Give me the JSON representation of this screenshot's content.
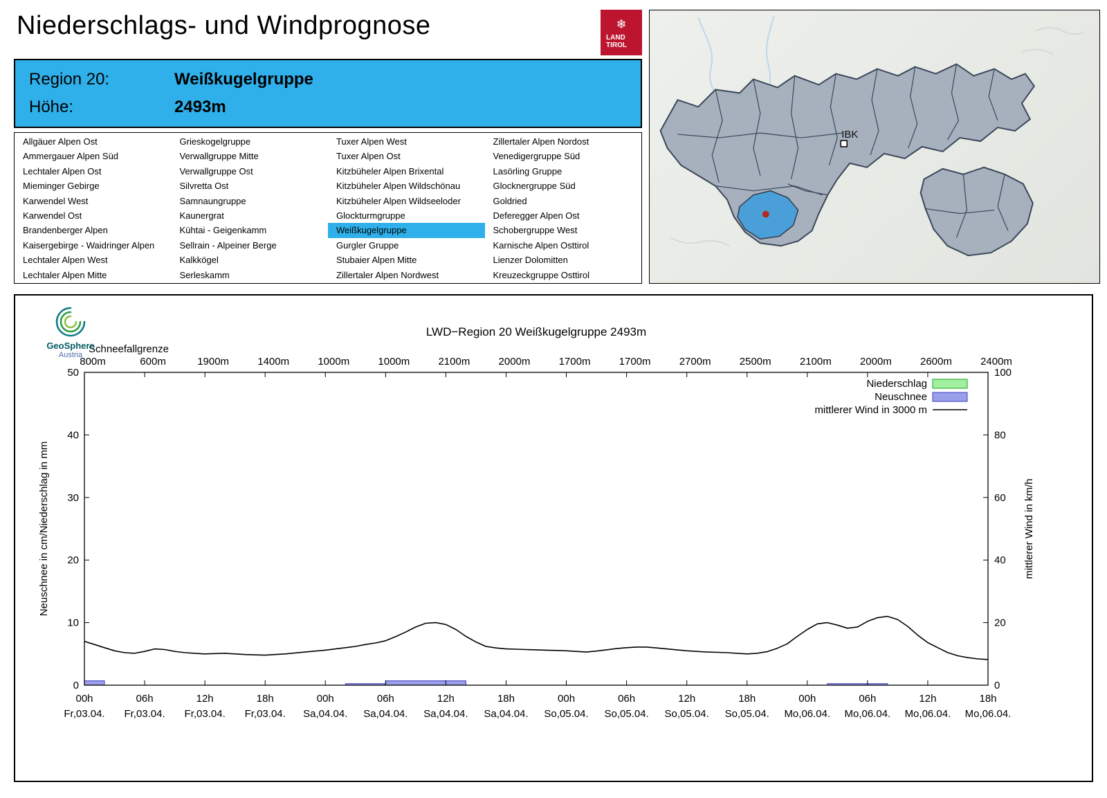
{
  "header": {
    "title": "Niederschlags- und Windprognose"
  },
  "logo": {
    "line1": "LAND",
    "line2": "TIROL"
  },
  "icons": {
    "snowflake": "❄"
  },
  "colors": {
    "accent": "#2fb0ea",
    "tirol_red": "#bd1530",
    "map_region_fill": "#a7b0bd",
    "map_region_stroke": "#39465a",
    "map_highlight": "#4b9fd9",
    "location_dot": "#b02a20",
    "niederschlag_fill": "#a0f0a0",
    "niederschlag_stroke": "#1ca01c",
    "neuschnee_fill": "#9aa0e8",
    "neuschnee_stroke": "#3c3cc8",
    "wind_line": "#000000"
  },
  "region_box": {
    "region_label": "Region 20:",
    "region_name": "Weißkugelgruppe",
    "altitude_label": "Höhe:",
    "altitude_value": "2493m"
  },
  "region_list": {
    "selected": "Weißkugelgruppe",
    "columns": [
      [
        "Allgäuer Alpen Ost",
        "Ammergauer Alpen Süd",
        "Lechtaler Alpen Ost",
        "Mieminger Gebirge",
        "Karwendel West",
        "Karwendel Ost",
        "Brandenberger Alpen",
        "Kaisergebirge - Waidringer Alpen",
        "Lechtaler Alpen West",
        "Lechtaler Alpen Mitte"
      ],
      [
        "Grieskogelgruppe",
        "Verwallgruppe Mitte",
        "Verwallgruppe Ost",
        "Silvretta Ost",
        "Samnaungruppe",
        "Kaunergrat",
        "Kühtai - Geigenkamm",
        "Sellrain - Alpeiner Berge",
        "Kalkkögel",
        "Serleskamm"
      ],
      [
        "Tuxer Alpen West",
        "Tuxer Alpen Ost",
        "Kitzbüheler Alpen Brixental",
        "Kitzbüheler Alpen Wildschönau",
        "Kitzbüheler Alpen Wildseeloder",
        "Glockturmgruppe",
        "Weißkugelgruppe",
        "Gurgler Gruppe",
        "Stubaier Alpen Mitte",
        "Zillertaler Alpen Nordwest"
      ],
      [
        "Zillertaler Alpen Nordost",
        "Venedigergruppe Süd",
        "Lasörling Gruppe",
        "Glocknergruppe Süd",
        "Goldried",
        "Deferegger Alpen Ost",
        "Schobergruppe West",
        "Karnische Alpen Osttirol",
        "Lienzer Dolomitten",
        "Kreuzeckgruppe Osttirol"
      ]
    ]
  },
  "map": {
    "city_label": "IBK"
  },
  "geosphere": {
    "name": "GeoSphere",
    "sub": "Austria"
  },
  "chart_data": {
    "type": "mixed",
    "title": "LWD−Region 20 Weißkugelgruppe 2493m",
    "snowline_label": "Schneefallgrenze",
    "snowline_values": [
      "800m",
      "600m",
      "1900m",
      "1400m",
      "1000m",
      "1000m",
      "2100m",
      "2000m",
      "1700m",
      "1700m",
      "2700m",
      "2500m",
      "2100m",
      "2000m",
      "2600m",
      "2400m"
    ],
    "x_unit": "hours_from_start",
    "x_range": [
      0,
      90
    ],
    "axes": {
      "left": {
        "label": "Neuschnee in cm/Niederschlag in mm",
        "range": [
          0,
          50
        ],
        "ticks": [
          0,
          10,
          20,
          30,
          40,
          50
        ]
      },
      "right": {
        "label": "mittlerer Wind in km/h",
        "range": [
          0,
          100
        ],
        "ticks": [
          0,
          20,
          40,
          60,
          80,
          100
        ]
      }
    },
    "xticks": [
      {
        "hour": 0,
        "time": "00h",
        "date": "Fr,03.04."
      },
      {
        "hour": 6,
        "time": "06h",
        "date": "Fr,03.04."
      },
      {
        "hour": 12,
        "time": "12h",
        "date": "Fr,03.04."
      },
      {
        "hour": 18,
        "time": "18h",
        "date": "Fr,03.04."
      },
      {
        "hour": 24,
        "time": "00h",
        "date": "Sa,04.04."
      },
      {
        "hour": 30,
        "time": "06h",
        "date": "Sa,04.04."
      },
      {
        "hour": 36,
        "time": "12h",
        "date": "Sa,04.04."
      },
      {
        "hour": 42,
        "time": "18h",
        "date": "Sa,04.04."
      },
      {
        "hour": 48,
        "time": "00h",
        "date": "So,05.04."
      },
      {
        "hour": 54,
        "time": "06h",
        "date": "So,05.04."
      },
      {
        "hour": 60,
        "time": "12h",
        "date": "So,05.04."
      },
      {
        "hour": 66,
        "time": "18h",
        "date": "So,05.04."
      },
      {
        "hour": 72,
        "time": "00h",
        "date": "Mo,06.04."
      },
      {
        "hour": 78,
        "time": "06h",
        "date": "Mo,06.04."
      },
      {
        "hour": 84,
        "time": "12h",
        "date": "Mo,06.04."
      },
      {
        "hour": 90,
        "time": "18h",
        "date": "Mo,06.04."
      }
    ],
    "legend": [
      {
        "label": "Niederschlag",
        "swatch": "box",
        "fill": "#a0f0a0",
        "stroke": "#1ca01c"
      },
      {
        "label": "Neuschnee",
        "swatch": "box",
        "fill": "#9aa0e8",
        "stroke": "#3c3cc8"
      },
      {
        "label": "mittlerer Wind in 3000 m",
        "swatch": "line",
        "stroke": "#000000"
      }
    ],
    "series": {
      "wind_kmh": [
        [
          0,
          14
        ],
        [
          1,
          13
        ],
        [
          2,
          12
        ],
        [
          3,
          11
        ],
        [
          4,
          10.4
        ],
        [
          5,
          10.2
        ],
        [
          6,
          10.8
        ],
        [
          7,
          11.6
        ],
        [
          8,
          11.4
        ],
        [
          9,
          10.8
        ],
        [
          10,
          10.4
        ],
        [
          11,
          10.2
        ],
        [
          12,
          10
        ],
        [
          13,
          10.1
        ],
        [
          14,
          10.2
        ],
        [
          15,
          10
        ],
        [
          16,
          9.8
        ],
        [
          17,
          9.7
        ],
        [
          18,
          9.6
        ],
        [
          19,
          9.8
        ],
        [
          20,
          10
        ],
        [
          21,
          10.3
        ],
        [
          22,
          10.6
        ],
        [
          23,
          10.9
        ],
        [
          24,
          11.2
        ],
        [
          25,
          11.6
        ],
        [
          26,
          12
        ],
        [
          27,
          12.4
        ],
        [
          28,
          13
        ],
        [
          29,
          13.5
        ],
        [
          30,
          14.2
        ],
        [
          31,
          15.5
        ],
        [
          32,
          17
        ],
        [
          33,
          18.6
        ],
        [
          34,
          19.8
        ],
        [
          35,
          20
        ],
        [
          36,
          19.4
        ],
        [
          37,
          17.8
        ],
        [
          38,
          15.6
        ],
        [
          39,
          13.8
        ],
        [
          40,
          12.4
        ],
        [
          41,
          11.9
        ],
        [
          42,
          11.6
        ],
        [
          43,
          11.5
        ],
        [
          44,
          11.4
        ],
        [
          45,
          11.3
        ],
        [
          46,
          11.2
        ],
        [
          47,
          11.1
        ],
        [
          48,
          11
        ],
        [
          49,
          10.8
        ],
        [
          50,
          10.6
        ],
        [
          51,
          10.9
        ],
        [
          52,
          11.3
        ],
        [
          53,
          11.7
        ],
        [
          54,
          12
        ],
        [
          55,
          12.2
        ],
        [
          56,
          12.2
        ],
        [
          57,
          11.9
        ],
        [
          58,
          11.6
        ],
        [
          59,
          11.3
        ],
        [
          60,
          11
        ],
        [
          61,
          10.8
        ],
        [
          62,
          10.6
        ],
        [
          63,
          10.5
        ],
        [
          64,
          10.4
        ],
        [
          65,
          10.2
        ],
        [
          66,
          10
        ],
        [
          67,
          10.2
        ],
        [
          68,
          10.7
        ],
        [
          69,
          11.8
        ],
        [
          70,
          13.2
        ],
        [
          71,
          15.6
        ],
        [
          72,
          17.8
        ],
        [
          73,
          19.6
        ],
        [
          74,
          20
        ],
        [
          75,
          19.2
        ],
        [
          76,
          18.2
        ],
        [
          77,
          18.6
        ],
        [
          78,
          20.4
        ],
        [
          79,
          21.6
        ],
        [
          80,
          22
        ],
        [
          81,
          21
        ],
        [
          82,
          18.8
        ],
        [
          83,
          16
        ],
        [
          84,
          13.6
        ],
        [
          85,
          12
        ],
        [
          86,
          10.4
        ],
        [
          87,
          9.4
        ],
        [
          88,
          8.8
        ],
        [
          89,
          8.4
        ],
        [
          90,
          8.2
        ]
      ],
      "neuschnee_cm_bars": [
        {
          "from": 0,
          "to": 2,
          "value": 0.7
        },
        {
          "from": 26,
          "to": 30,
          "value": 0.25
        },
        {
          "from": 30,
          "to": 38,
          "value": 0.7
        },
        {
          "from": 74,
          "to": 80,
          "value": 0.25
        }
      ],
      "niederschlag_mm_bars": []
    }
  }
}
